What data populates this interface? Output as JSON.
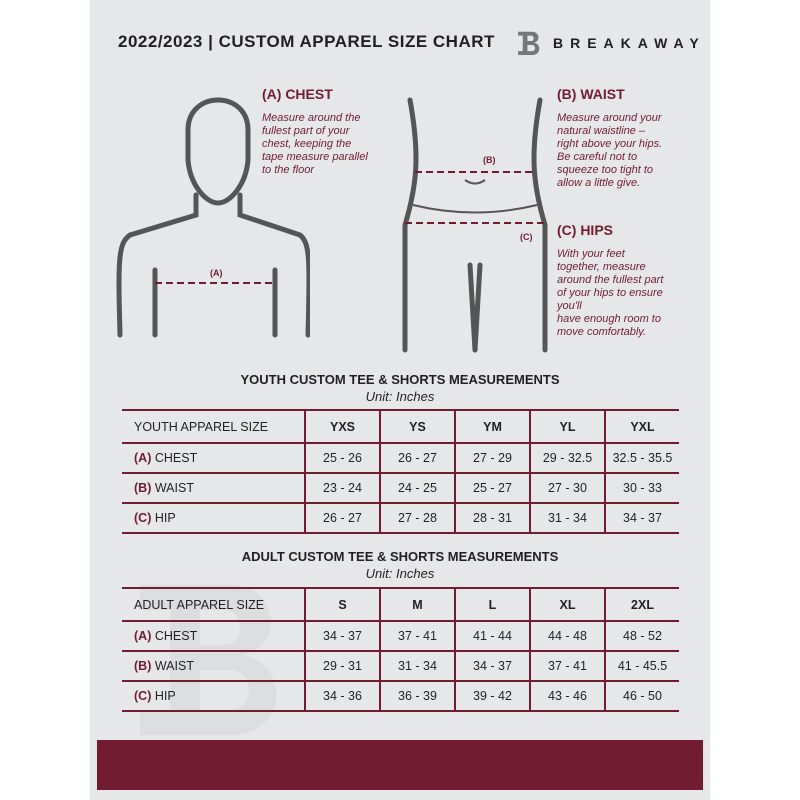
{
  "header": {
    "title": "2022/2023  |  CUSTOM APPAREL SIZE CHART",
    "brand": "BREAKAWAY",
    "logo_letter": "B"
  },
  "chest": {
    "heading": "(A) CHEST",
    "text": [
      "Measure around the",
      "fullest part of your",
      "chest, keeping the",
      "tape measure parallel",
      "to the floor"
    ],
    "marker": "(A)"
  },
  "waist": {
    "heading": "(B) WAIST",
    "text": [
      "Measure around your",
      "natural waistline –",
      "right above your hips.",
      "Be careful not to",
      "squeeze too tight to",
      "allow a little give."
    ],
    "marker": "(B)"
  },
  "hips": {
    "heading": "(C) HIPS",
    "text": [
      "With your feet",
      "together, measure",
      "around the fullest part",
      "of your hips to ensure",
      "you'll",
      "have enough room to",
      "move comfortably."
    ],
    "marker": "(C)"
  },
  "accent": "#731b31",
  "youth": {
    "title": "YOUTH CUSTOM TEE & SHORTS MEASUREMENTS",
    "unit": "Unit: Inches",
    "header": "YOUTH APPAREL SIZE",
    "sizes": [
      "YXS",
      "YS",
      "YM",
      "YL",
      "YXL"
    ],
    "rows": [
      {
        "code": "(A)",
        "name": "CHEST",
        "values": [
          "25 - 26",
          "26 - 27",
          "27 - 29",
          "29 - 32.5",
          "32.5 - 35.5"
        ]
      },
      {
        "code": "(B)",
        "name": "WAIST",
        "values": [
          "23 - 24",
          "24 - 25",
          "25 - 27",
          "27 - 30",
          "30 - 33"
        ]
      },
      {
        "code": "(C)",
        "name": "HIP",
        "values": [
          "26 - 27",
          "27 - 28",
          "28 - 31",
          "31 - 34",
          "34 - 37"
        ]
      }
    ]
  },
  "adult": {
    "title": "ADULT CUSTOM TEE & SHORTS MEASUREMENTS",
    "unit": "Unit: Inches",
    "header": "ADULT APPAREL SIZE",
    "sizes": [
      "S",
      "M",
      "L",
      "XL",
      "2XL"
    ],
    "rows": [
      {
        "code": "(A)",
        "name": "CHEST",
        "values": [
          "34 - 37",
          "37 - 41",
          "41 - 44",
          "44 - 48",
          "48 - 52"
        ]
      },
      {
        "code": "(B)",
        "name": "WAIST",
        "values": [
          "29 - 31",
          "31 - 34",
          "34 - 37",
          "37 - 41",
          "41 - 45.5"
        ]
      },
      {
        "code": "(C)",
        "name": "HIP",
        "values": [
          "34 - 36",
          "36 - 39",
          "39 - 42",
          "43 - 46",
          "46 - 50"
        ]
      }
    ]
  }
}
